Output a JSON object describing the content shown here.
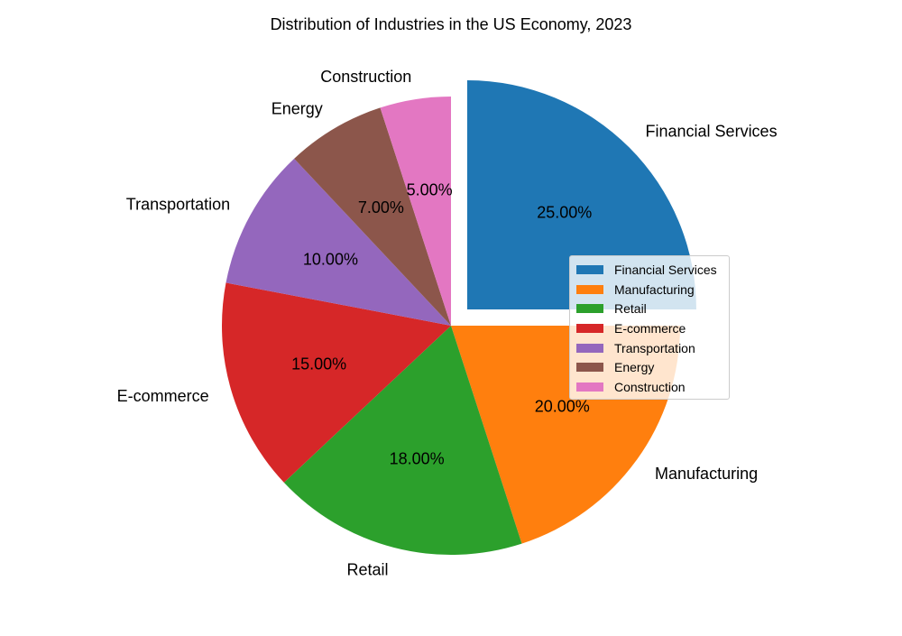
{
  "chart_data": {
    "type": "pie",
    "title": "Distribution of Industries in the US Economy, 2023",
    "legend_position": "right",
    "slices": [
      {
        "label": "Financial Services",
        "value": 25,
        "pct_label": "25.00%",
        "color": "#1f77b4",
        "exploded": true
      },
      {
        "label": "Manufacturing",
        "value": 20,
        "pct_label": "20.00%",
        "color": "#ff7f0e",
        "exploded": false
      },
      {
        "label": "Retail",
        "value": 18,
        "pct_label": "18.00%",
        "color": "#2ca02c",
        "exploded": false
      },
      {
        "label": "E-commerce",
        "value": 15,
        "pct_label": "15.00%",
        "color": "#d62728",
        "exploded": false
      },
      {
        "label": "Transportation",
        "value": 10,
        "pct_label": "10.00%",
        "color": "#9467bd",
        "exploded": false
      },
      {
        "label": "Energy",
        "value": 7,
        "pct_label": "7.00%",
        "color": "#8c564b",
        "exploded": false
      },
      {
        "label": "Construction",
        "value": 5,
        "pct_label": "5.00%",
        "color": "#e377c2",
        "exploded": false
      }
    ]
  }
}
